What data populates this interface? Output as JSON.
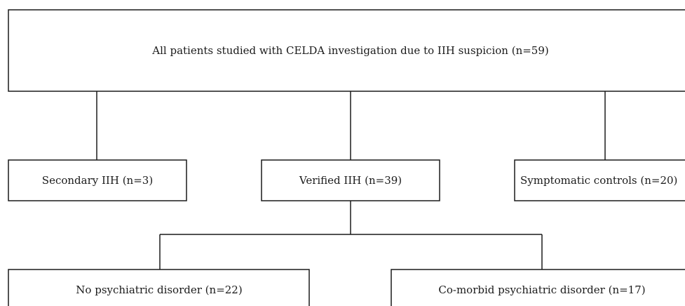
{
  "nodes": [
    {
      "label": "All patients studied with CELDA investigation due to IIH suspicion (n=59)"
    },
    {
      "label": "Secondary IIH (n=3)"
    },
    {
      "label": "Verified IIH (n=39)"
    },
    {
      "label": "Symptomatic controls (n=20)"
    },
    {
      "label": "No psychiatric disorder (n=22)"
    },
    {
      "label": "Co-morbid psychiatric disorder (n=17)"
    }
  ]
}
